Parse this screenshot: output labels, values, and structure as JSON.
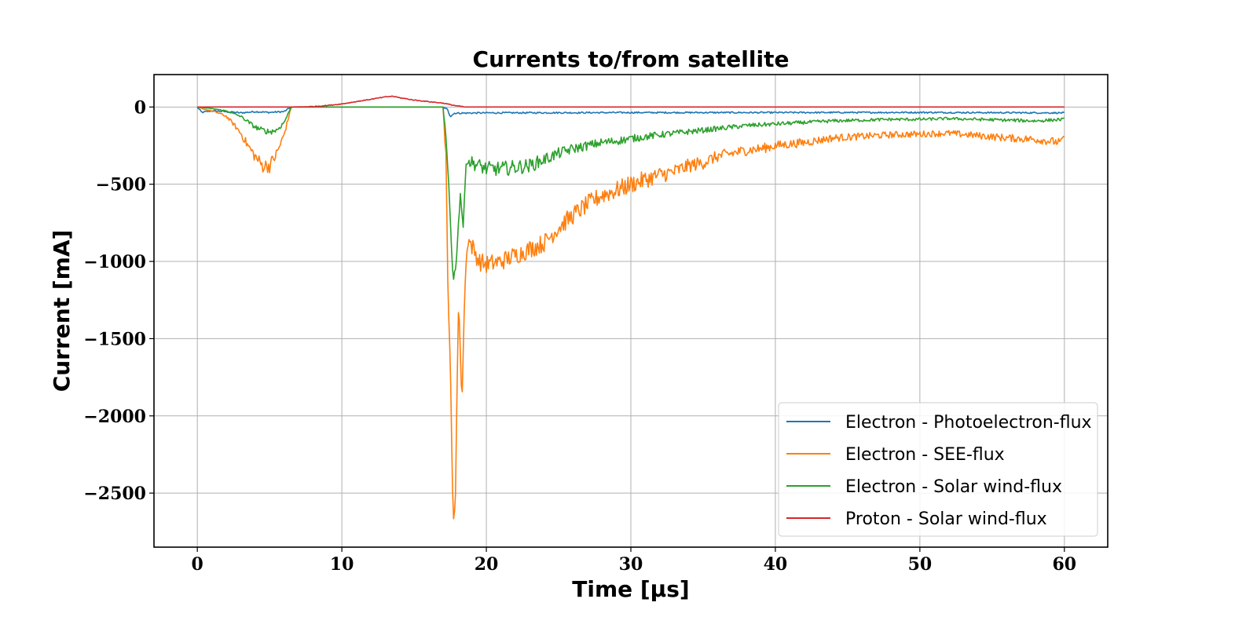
{
  "chart_data": {
    "type": "line",
    "title": "Currents to/from satellite",
    "xlabel": "Time [μs]",
    "ylabel": "Current [mA]",
    "xlim": [
      -3,
      63
    ],
    "ylim": [
      -2850,
      210
    ],
    "xticks": [
      0,
      10,
      20,
      30,
      40,
      50,
      60
    ],
    "yticks": [
      0,
      -500,
      -1000,
      -1500,
      -2000,
      -2500
    ],
    "xtick_labels": [
      "0",
      "10",
      "20",
      "30",
      "40",
      "50",
      "60"
    ],
    "ytick_labels": [
      "0",
      "−500",
      "−1000",
      "−1500",
      "−2000",
      "−2500"
    ],
    "grid": true,
    "legend_position": "lower-right",
    "series": [
      {
        "name": "Electron - Photoelectron-flux",
        "color": "#1f77b4",
        "points": [
          [
            0,
            0
          ],
          [
            0.3,
            -35
          ],
          [
            1,
            -25
          ],
          [
            2,
            -30
          ],
          [
            3,
            -38
          ],
          [
            4,
            -30
          ],
          [
            5,
            -35
          ],
          [
            6,
            -30
          ],
          [
            6.5,
            0
          ],
          [
            17,
            0
          ],
          [
            17.3,
            -15
          ],
          [
            17.5,
            -60
          ],
          [
            17.8,
            -40
          ],
          [
            20,
            -38
          ],
          [
            30,
            -36
          ],
          [
            40,
            -36
          ],
          [
            50,
            -35
          ],
          [
            60,
            -38
          ]
        ]
      },
      {
        "name": "Electron - SEE-flux",
        "color": "#ff7f0e",
        "points": [
          [
            0,
            0
          ],
          [
            0.5,
            -15
          ],
          [
            1,
            -25
          ],
          [
            1.5,
            -40
          ],
          [
            2,
            -60
          ],
          [
            2.5,
            -110
          ],
          [
            3,
            -170
          ],
          [
            3.5,
            -250
          ],
          [
            4,
            -320
          ],
          [
            4.5,
            -380
          ],
          [
            5,
            -380
          ],
          [
            5.5,
            -300
          ],
          [
            6,
            -180
          ],
          [
            6.5,
            0
          ],
          [
            17,
            0
          ],
          [
            17.2,
            -300
          ],
          [
            17.35,
            -1250
          ],
          [
            17.5,
            -1600
          ],
          [
            17.7,
            -2700
          ],
          [
            17.85,
            -2600
          ],
          [
            18.05,
            -1320
          ],
          [
            18.15,
            -1400
          ],
          [
            18.3,
            -1950
          ],
          [
            18.5,
            -1200
          ],
          [
            18.7,
            -850
          ],
          [
            19,
            -900
          ],
          [
            19.5,
            -1000
          ],
          [
            20,
            -1020
          ],
          [
            21,
            -1000
          ],
          [
            22,
            -960
          ],
          [
            23,
            -920
          ],
          [
            24,
            -880
          ],
          [
            25,
            -780
          ],
          [
            26,
            -700
          ],
          [
            27,
            -630
          ],
          [
            28,
            -570
          ],
          [
            29,
            -540
          ],
          [
            30,
            -500
          ],
          [
            31,
            -470
          ],
          [
            32,
            -440
          ],
          [
            33,
            -420
          ],
          [
            34,
            -380
          ],
          [
            35,
            -360
          ],
          [
            36,
            -320
          ],
          [
            37,
            -300
          ],
          [
            38,
            -280
          ],
          [
            39,
            -270
          ],
          [
            40,
            -250
          ],
          [
            42,
            -230
          ],
          [
            44,
            -200
          ],
          [
            46,
            -190
          ],
          [
            48,
            -180
          ],
          [
            50,
            -175
          ],
          [
            52,
            -170
          ],
          [
            54,
            -185
          ],
          [
            56,
            -200
          ],
          [
            58,
            -210
          ],
          [
            59.8,
            -230
          ],
          [
            60,
            -180
          ]
        ]
      },
      {
        "name": "Electron - Solar wind-flux",
        "color": "#2ca02c",
        "points": [
          [
            0,
            0
          ],
          [
            0.5,
            -5
          ],
          [
            1,
            -10
          ],
          [
            2,
            -25
          ],
          [
            3,
            -60
          ],
          [
            4,
            -130
          ],
          [
            4.5,
            -150
          ],
          [
            5,
            -160
          ],
          [
            5.5,
            -150
          ],
          [
            6,
            -100
          ],
          [
            6.5,
            0
          ],
          [
            17,
            0
          ],
          [
            17.2,
            -200
          ],
          [
            17.4,
            -500
          ],
          [
            17.7,
            -1130
          ],
          [
            17.9,
            -1020
          ],
          [
            18.2,
            -560
          ],
          [
            18.4,
            -780
          ],
          [
            18.6,
            -350
          ],
          [
            19,
            -360
          ],
          [
            20,
            -400
          ],
          [
            21,
            -400
          ],
          [
            22,
            -390
          ],
          [
            23,
            -380
          ],
          [
            24,
            -340
          ],
          [
            25,
            -300
          ],
          [
            26,
            -270
          ],
          [
            27,
            -250
          ],
          [
            28,
            -230
          ],
          [
            29,
            -220
          ],
          [
            30,
            -205
          ],
          [
            32,
            -180
          ],
          [
            34,
            -160
          ],
          [
            36,
            -140
          ],
          [
            38,
            -120
          ],
          [
            40,
            -110
          ],
          [
            42,
            -100
          ],
          [
            44,
            -90
          ],
          [
            46,
            -85
          ],
          [
            48,
            -80
          ],
          [
            50,
            -80
          ],
          [
            52,
            -75
          ],
          [
            54,
            -80
          ],
          [
            56,
            -85
          ],
          [
            58,
            -90
          ],
          [
            60,
            -80
          ]
        ]
      },
      {
        "name": "Proton - Solar wind-flux",
        "color": "#d62728",
        "points": [
          [
            0,
            0
          ],
          [
            6.5,
            0
          ],
          [
            8,
            3
          ],
          [
            9,
            10
          ],
          [
            10,
            20
          ],
          [
            11,
            35
          ],
          [
            12,
            50
          ],
          [
            13,
            65
          ],
          [
            13.5,
            70
          ],
          [
            14,
            60
          ],
          [
            15,
            45
          ],
          [
            16,
            35
          ],
          [
            17,
            25
          ],
          [
            17.8,
            10
          ],
          [
            18.5,
            0
          ],
          [
            60,
            0
          ]
        ]
      }
    ]
  }
}
